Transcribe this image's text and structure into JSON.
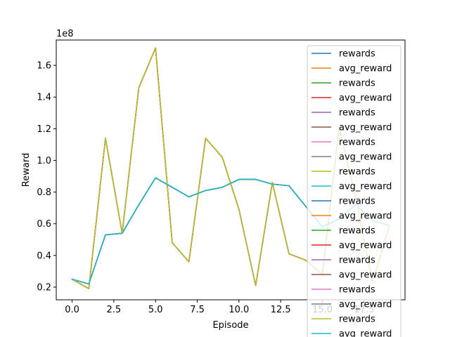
{
  "chart_data": {
    "type": "line",
    "title": "",
    "xlabel": "Episode",
    "ylabel": "Reward",
    "scale_label": "1e8",
    "x": [
      0,
      1,
      2,
      3,
      4,
      5,
      6,
      7,
      8,
      9,
      10,
      11,
      12,
      13,
      14,
      15,
      16,
      17,
      18,
      19
    ],
    "xlim": [
      -0.95,
      19.95
    ],
    "ylim": [
      0.12,
      1.76
    ],
    "y_scale_factor": 100000000,
    "xticks": [
      "0.0",
      "2.5",
      "5.0",
      "7.5",
      "10.0",
      "12.5",
      "15.0",
      "17.5"
    ],
    "xtick_values": [
      0,
      2.5,
      5,
      7.5,
      10,
      12.5,
      15,
      17.5
    ],
    "yticks": [
      "0.2",
      "0.4",
      "0.6",
      "0.8",
      "1.0",
      "1.2",
      "1.4",
      "1.6"
    ],
    "ytick_values": [
      0.2,
      0.4,
      0.6,
      0.8,
      1.0,
      1.2,
      1.4,
      1.6
    ],
    "grid": false,
    "legend_placement": "right",
    "series": [
      {
        "name": "rewards",
        "color": "#1f77b4",
        "kind": "rewards",
        "values": [
          0.25,
          0.19,
          1.14,
          0.54,
          1.46,
          1.71,
          0.48,
          0.36,
          1.14,
          1.02,
          0.69,
          0.21,
          0.86,
          0.41,
          0.37,
          0.28,
          1.21,
          0.76,
          0.23,
          0.58
        ]
      },
      {
        "name": "avg_reward",
        "color": "#ff7f0e",
        "kind": "avg",
        "values": [
          0.25,
          0.22,
          0.53,
          0.54,
          0.72,
          0.89,
          0.83,
          0.77,
          0.81,
          0.83,
          0.88,
          0.88,
          0.85,
          0.84,
          0.71,
          0.58,
          0.63,
          0.72,
          0.62,
          0.59
        ]
      },
      {
        "name": "rewards",
        "color": "#2ca02c",
        "kind": "rewards",
        "values": [
          0.25,
          0.19,
          1.14,
          0.54,
          1.46,
          1.71,
          0.48,
          0.36,
          1.14,
          1.02,
          0.69,
          0.21,
          0.86,
          0.41,
          0.37,
          0.28,
          1.21,
          0.76,
          0.23,
          0.58
        ]
      },
      {
        "name": "avg_reward",
        "color": "#d62728",
        "kind": "avg",
        "values": [
          0.25,
          0.22,
          0.53,
          0.54,
          0.72,
          0.89,
          0.83,
          0.77,
          0.81,
          0.83,
          0.88,
          0.88,
          0.85,
          0.84,
          0.71,
          0.58,
          0.63,
          0.72,
          0.62,
          0.59
        ]
      },
      {
        "name": "rewards",
        "color": "#9467bd",
        "kind": "rewards",
        "values": [
          0.25,
          0.19,
          1.14,
          0.54,
          1.46,
          1.71,
          0.48,
          0.36,
          1.14,
          1.02,
          0.69,
          0.21,
          0.86,
          0.41,
          0.37,
          0.28,
          1.21,
          0.76,
          0.23,
          0.58
        ]
      },
      {
        "name": "avg_reward",
        "color": "#8c564b",
        "kind": "avg",
        "values": [
          0.25,
          0.22,
          0.53,
          0.54,
          0.72,
          0.89,
          0.83,
          0.77,
          0.81,
          0.83,
          0.88,
          0.88,
          0.85,
          0.84,
          0.71,
          0.58,
          0.63,
          0.72,
          0.62,
          0.59
        ]
      },
      {
        "name": "rewards",
        "color": "#e377c2",
        "kind": "rewards",
        "values": [
          0.25,
          0.19,
          1.14,
          0.54,
          1.46,
          1.71,
          0.48,
          0.36,
          1.14,
          1.02,
          0.69,
          0.21,
          0.86,
          0.41,
          0.37,
          0.28,
          1.21,
          0.76,
          0.23,
          0.58
        ]
      },
      {
        "name": "avg_reward",
        "color": "#7f7f7f",
        "kind": "avg",
        "values": [
          0.25,
          0.22,
          0.53,
          0.54,
          0.72,
          0.89,
          0.83,
          0.77,
          0.81,
          0.83,
          0.88,
          0.88,
          0.85,
          0.84,
          0.71,
          0.58,
          0.63,
          0.72,
          0.62,
          0.59
        ]
      },
      {
        "name": "rewards",
        "color": "#bcbd22",
        "kind": "rewards",
        "values": [
          0.25,
          0.19,
          1.14,
          0.54,
          1.46,
          1.71,
          0.48,
          0.36,
          1.14,
          1.02,
          0.69,
          0.21,
          0.86,
          0.41,
          0.37,
          0.28,
          1.21,
          0.76,
          0.23,
          0.58
        ]
      },
      {
        "name": "avg_reward",
        "color": "#17becf",
        "kind": "avg",
        "values": [
          0.25,
          0.22,
          0.53,
          0.54,
          0.72,
          0.89,
          0.83,
          0.77,
          0.81,
          0.83,
          0.88,
          0.88,
          0.85,
          0.84,
          0.71,
          0.58,
          0.63,
          0.72,
          0.62,
          0.59
        ]
      },
      {
        "name": "rewards",
        "color": "#1f77b4",
        "kind": "rewards",
        "values": [
          0.25,
          0.19,
          1.14,
          0.54,
          1.46,
          1.71,
          0.48,
          0.36,
          1.14,
          1.02,
          0.69,
          0.21,
          0.86,
          0.41,
          0.37,
          0.28,
          1.21,
          0.76,
          0.23,
          0.58
        ]
      },
      {
        "name": "avg_reward",
        "color": "#ff7f0e",
        "kind": "avg",
        "values": [
          0.25,
          0.22,
          0.53,
          0.54,
          0.72,
          0.89,
          0.83,
          0.77,
          0.81,
          0.83,
          0.88,
          0.88,
          0.85,
          0.84,
          0.71,
          0.58,
          0.63,
          0.72,
          0.62,
          0.59
        ]
      },
      {
        "name": "rewards",
        "color": "#2ca02c",
        "kind": "rewards",
        "values": [
          0.25,
          0.19,
          1.14,
          0.54,
          1.46,
          1.71,
          0.48,
          0.36,
          1.14,
          1.02,
          0.69,
          0.21,
          0.86,
          0.41,
          0.37,
          0.28,
          1.21,
          0.76,
          0.23,
          0.58
        ]
      },
      {
        "name": "avg_reward",
        "color": "#d62728",
        "kind": "avg",
        "values": [
          0.25,
          0.22,
          0.53,
          0.54,
          0.72,
          0.89,
          0.83,
          0.77,
          0.81,
          0.83,
          0.88,
          0.88,
          0.85,
          0.84,
          0.71,
          0.58,
          0.63,
          0.72,
          0.62,
          0.59
        ]
      },
      {
        "name": "rewards",
        "color": "#9467bd",
        "kind": "rewards",
        "values": [
          0.25,
          0.19,
          1.14,
          0.54,
          1.46,
          1.71,
          0.48,
          0.36,
          1.14,
          1.02,
          0.69,
          0.21,
          0.86,
          0.41,
          0.37,
          0.28,
          1.21,
          0.76,
          0.23,
          0.58
        ]
      },
      {
        "name": "avg_reward",
        "color": "#8c564b",
        "kind": "avg",
        "values": [
          0.25,
          0.22,
          0.53,
          0.54,
          0.72,
          0.89,
          0.83,
          0.77,
          0.81,
          0.83,
          0.88,
          0.88,
          0.85,
          0.84,
          0.71,
          0.58,
          0.63,
          0.72,
          0.62,
          0.59
        ]
      },
      {
        "name": "rewards",
        "color": "#e377c2",
        "kind": "rewards",
        "values": [
          0.25,
          0.19,
          1.14,
          0.54,
          1.46,
          1.71,
          0.48,
          0.36,
          1.14,
          1.02,
          0.69,
          0.21,
          0.86,
          0.41,
          0.37,
          0.28,
          1.21,
          0.76,
          0.23,
          0.58
        ]
      },
      {
        "name": "avg_reward",
        "color": "#7f7f7f",
        "kind": "avg",
        "values": [
          0.25,
          0.22,
          0.53,
          0.54,
          0.72,
          0.89,
          0.83,
          0.77,
          0.81,
          0.83,
          0.88,
          0.88,
          0.85,
          0.84,
          0.71,
          0.58,
          0.63,
          0.72,
          0.62,
          0.59
        ]
      },
      {
        "name": "rewards",
        "color": "#bcbd22",
        "kind": "rewards",
        "values": [
          0.25,
          0.19,
          1.14,
          0.54,
          1.46,
          1.71,
          0.48,
          0.36,
          1.14,
          1.02,
          0.69,
          0.21,
          0.86,
          0.41,
          0.37,
          0.28,
          1.21,
          0.76,
          0.23,
          0.58
        ]
      },
      {
        "name": "avg_reward",
        "color": "#17becf",
        "kind": "avg",
        "values": [
          0.25,
          0.22,
          0.53,
          0.54,
          0.72,
          0.89,
          0.83,
          0.77,
          0.81,
          0.83,
          0.88,
          0.88,
          0.85,
          0.84,
          0.71,
          0.58,
          0.63,
          0.72,
          0.62,
          0.59
        ]
      }
    ]
  }
}
